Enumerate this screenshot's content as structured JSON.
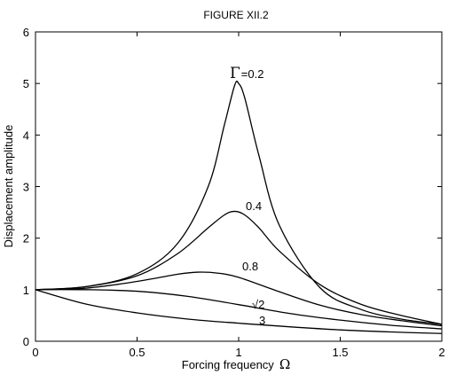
{
  "chart_data": {
    "type": "line",
    "title": "FIGURE XII.2",
    "xlabel": "Forcing frequency",
    "xlabel_symbol": "Ω",
    "ylabel": "Displacement amplitude",
    "xlim": [
      0,
      2
    ],
    "ylim": [
      0,
      6
    ],
    "xticks": [
      "0",
      "0.5",
      "1",
      "1.5",
      "2"
    ],
    "yticks": [
      "0",
      "1",
      "2",
      "3",
      "4",
      "5",
      "6"
    ],
    "grid": false,
    "series": [
      {
        "name": "=0.2",
        "gamma": 0.2,
        "symbol": "Γ",
        "x": [
          0,
          0.25,
          0.5,
          0.7,
          0.85,
          0.93,
          0.98,
          1.0,
          1.03,
          1.1,
          1.2,
          1.4,
          1.6,
          1.8,
          2.0
        ],
        "y": [
          1.0,
          1.06,
          1.31,
          1.9,
          3.0,
          4.2,
          4.96,
          5.0,
          4.72,
          3.6,
          2.25,
          1.04,
          0.62,
          0.43,
          0.33
        ]
      },
      {
        "name": "0.4",
        "gamma": 0.4,
        "x": [
          0,
          0.25,
          0.5,
          0.7,
          0.85,
          0.93,
          0.98,
          1.03,
          1.1,
          1.2,
          1.4,
          1.6,
          1.8,
          2.0
        ],
        "y": [
          1.0,
          1.06,
          1.27,
          1.7,
          2.2,
          2.45,
          2.52,
          2.45,
          2.2,
          1.75,
          1.1,
          0.72,
          0.5,
          0.33
        ]
      },
      {
        "name": "0.8",
        "gamma": 0.8,
        "x": [
          0,
          0.25,
          0.5,
          0.7,
          0.8,
          0.9,
          1.0,
          1.2,
          1.4,
          1.6,
          1.8,
          2.0
        ],
        "y": [
          1.0,
          1.03,
          1.16,
          1.3,
          1.34,
          1.32,
          1.24,
          0.96,
          0.7,
          0.52,
          0.4,
          0.3
        ]
      },
      {
        "name": "√2",
        "gamma": 1.414,
        "x": [
          0,
          0.25,
          0.5,
          0.75,
          1.0,
          1.25,
          1.5,
          1.75,
          2.0
        ],
        "y": [
          1.0,
          1.0,
          0.97,
          0.87,
          0.71,
          0.54,
          0.41,
          0.31,
          0.24
        ]
      },
      {
        "name": "3",
        "gamma": 3,
        "x": [
          0,
          0.25,
          0.5,
          0.75,
          1.0,
          1.25,
          1.5,
          1.75,
          2.0
        ],
        "y": [
          1.0,
          0.72,
          0.55,
          0.43,
          0.35,
          0.28,
          0.22,
          0.18,
          0.15
        ]
      }
    ]
  }
}
